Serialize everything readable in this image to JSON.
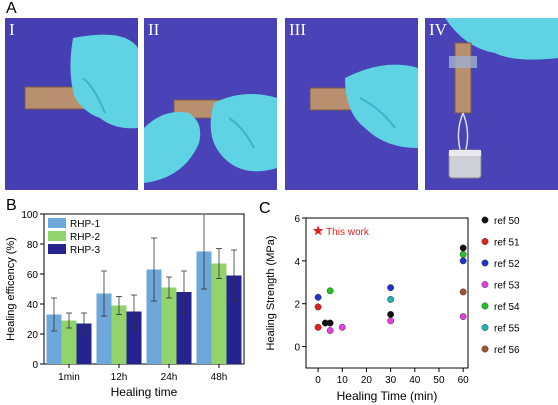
{
  "panel_a": {
    "letter": "A",
    "photos": [
      {
        "label": "I"
      },
      {
        "label": "II"
      },
      {
        "label": "III"
      },
      {
        "label": "IV"
      }
    ]
  },
  "panel_b": {
    "letter": "B"
  },
  "panel_c": {
    "letter": "C"
  },
  "colors": {
    "photo_bg": "#4a43b8",
    "glove": "#5fd3e3",
    "strip": "#b89070",
    "rhp1": "#6ea7d9",
    "rhp2": "#93d36b",
    "rhp3": "#24238f",
    "star": "#e02020"
  },
  "chart_data": [
    {
      "type": "bar",
      "ylabel": "Healing efficency (%)",
      "xlabel": "Healing time",
      "categories": [
        "1min",
        "12h",
        "24h",
        "48h"
      ],
      "ylim": [
        0,
        100
      ],
      "yticks": [
        0,
        20,
        40,
        60,
        80,
        100
      ],
      "legend_position": "top-left",
      "series": [
        {
          "name": "RHP-1",
          "values": [
            33,
            47,
            63,
            75
          ],
          "errors": [
            11,
            15,
            21,
            25
          ]
        },
        {
          "name": "RHP-2",
          "values": [
            29,
            39,
            51,
            67
          ],
          "errors": [
            5,
            6,
            7,
            10
          ]
        },
        {
          "name": "RHP-3",
          "values": [
            27,
            35,
            48,
            59
          ],
          "errors": [
            7,
            11,
            14,
            17
          ]
        }
      ]
    },
    {
      "type": "scatter",
      "ylabel": "Healing Strength (MPa)",
      "xlabel": "Healing Time (min)",
      "xlim": [
        -5,
        62
      ],
      "ylim": [
        -1,
        6
      ],
      "xticks": [
        0,
        10,
        20,
        30,
        40,
        50,
        60
      ],
      "yticks": [
        0,
        2,
        4,
        6
      ],
      "highlight": {
        "name": "This work",
        "x": 0,
        "y": 5.4,
        "color": "#e02020"
      },
      "legend_position": "right",
      "series": [
        {
          "name": "ref 50",
          "color": "#111111",
          "points": [
            [
              5,
              1.1
            ],
            [
              3,
              1.1
            ],
            [
              30,
              1.5
            ],
            [
              60,
              4.6
            ]
          ]
        },
        {
          "name": "ref 51",
          "color": "#e02020",
          "points": [
            [
              0,
              0.9
            ],
            [
              0,
              1.85
            ]
          ]
        },
        {
          "name": "ref 52",
          "color": "#2233cc",
          "points": [
            [
              0,
              2.3
            ],
            [
              30,
              2.75
            ],
            [
              60,
              4.0
            ]
          ]
        },
        {
          "name": "ref 53",
          "color": "#e040e0",
          "points": [
            [
              5,
              0.75
            ],
            [
              10,
              0.9
            ],
            [
              30,
              1.2
            ],
            [
              60,
              1.4
            ]
          ]
        },
        {
          "name": "ref 54",
          "color": "#22c022",
          "points": [
            [
              5,
              2.6
            ],
            [
              60,
              4.3
            ]
          ]
        },
        {
          "name": "ref 55",
          "color": "#20b0b0",
          "points": [
            [
              30,
              2.2
            ]
          ]
        },
        {
          "name": "ref 56",
          "color": "#a0522d",
          "points": [
            [
              60,
              2.55
            ]
          ]
        }
      ]
    }
  ]
}
